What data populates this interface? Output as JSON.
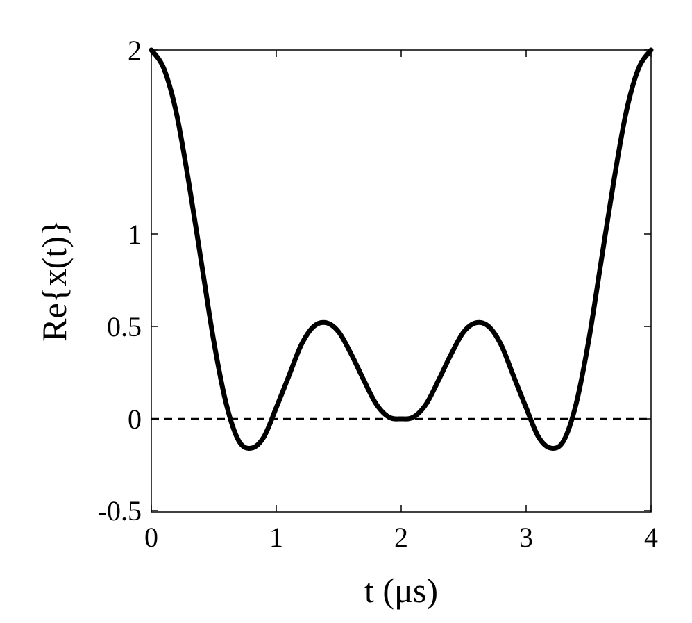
{
  "chart_data": {
    "type": "line",
    "xlabel": "t (μs)",
    "ylabel": "Re{x(t)}",
    "xlim": [
      0,
      4
    ],
    "ylim": [
      -0.5,
      2
    ],
    "xticks": [
      0,
      1,
      2,
      3,
      4
    ],
    "xtick_labels": [
      "0",
      "1",
      "2",
      "3",
      "4"
    ],
    "yticks": [
      -0.5,
      0,
      0.5,
      1,
      2
    ],
    "ytick_labels": [
      "-0.5",
      "0",
      "0.5",
      "1",
      "2"
    ],
    "grid": false,
    "series": [
      {
        "style": "solid",
        "color": "#000000",
        "x": [
          0,
          0.1,
          0.2,
          0.3,
          0.4,
          0.5,
          0.6,
          0.7,
          0.8,
          0.9,
          1.0,
          1.1,
          1.2,
          1.3,
          1.4,
          1.5,
          1.6,
          1.7,
          1.8,
          1.9,
          2.0,
          2.1,
          2.2,
          2.3,
          2.4,
          2.5,
          2.6,
          2.7,
          2.8,
          2.9,
          3.0,
          3.1,
          3.2,
          3.3,
          3.4,
          3.5,
          3.6,
          3.7,
          3.8,
          3.9,
          4.0
        ],
        "y": [
          2.0,
          1.9,
          1.66,
          1.28,
          0.85,
          0.42,
          0.08,
          -0.12,
          -0.16,
          -0.1,
          0.06,
          0.23,
          0.4,
          0.5,
          0.52,
          0.47,
          0.35,
          0.21,
          0.08,
          0.01,
          0.0,
          0.01,
          0.08,
          0.21,
          0.35,
          0.47,
          0.52,
          0.5,
          0.4,
          0.23,
          0.06,
          -0.1,
          -0.16,
          -0.12,
          0.08,
          0.42,
          0.85,
          1.28,
          1.66,
          1.9,
          2.0
        ]
      },
      {
        "style": "dashed",
        "color": "#000000",
        "x": [
          0,
          4
        ],
        "y": [
          0,
          0
        ]
      }
    ]
  }
}
